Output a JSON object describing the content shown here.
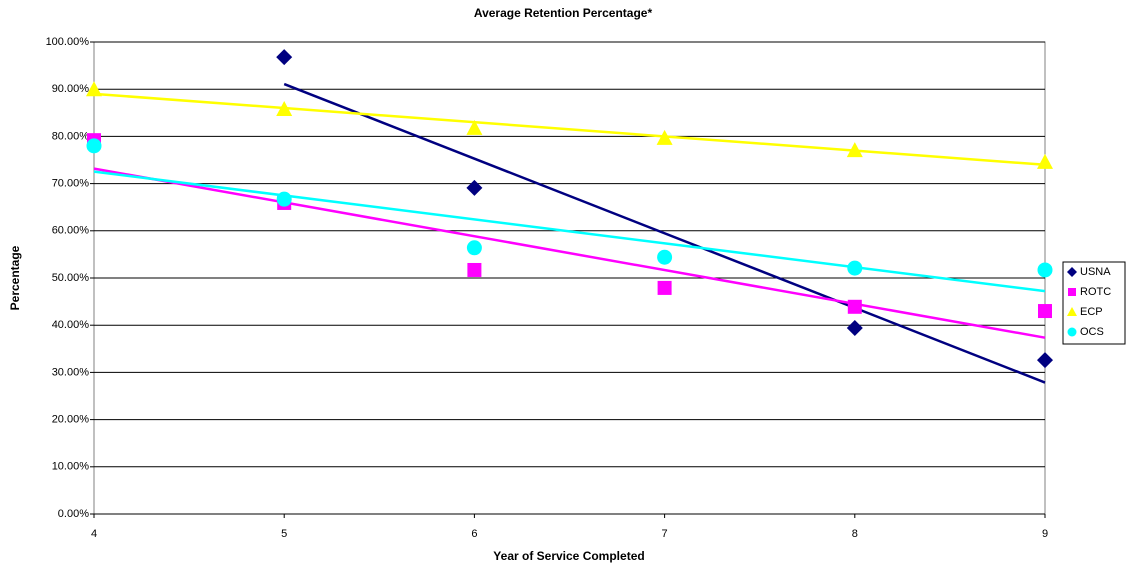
{
  "chart_data": {
    "type": "scatter",
    "title": "Average Retention Percentage*",
    "x_label": "Year of Service Completed",
    "y_label": "Percentage",
    "x": [
      4,
      5,
      6,
      7,
      8,
      9
    ],
    "series": [
      {
        "name": "USNA",
        "color": "#000080",
        "marker": "diamond",
        "values": [
          null,
          96.8,
          69.1,
          null,
          39.4,
          32.6
        ]
      },
      {
        "name": "ROTC",
        "color": "#ff00ff",
        "marker": "square",
        "values": [
          79.2,
          65.9,
          51.7,
          47.9,
          43.9,
          43.0
        ]
      },
      {
        "name": "ECP",
        "color": "#ffff00",
        "marker": "triangle",
        "values": [
          90.0,
          85.8,
          81.8,
          79.7,
          77.1,
          74.6
        ]
      },
      {
        "name": "OCS",
        "color": "#00ffff",
        "marker": "circle",
        "values": [
          78.0,
          66.7,
          56.4,
          54.4,
          52.1,
          51.7
        ]
      }
    ],
    "trendline": "linear",
    "xlim": [
      4,
      9
    ],
    "xticks": [
      4,
      5,
      6,
      7,
      8,
      9
    ],
    "ylim": [
      0,
      100
    ],
    "yticks": [
      {
        "value": 0,
        "label": "0.00%"
      },
      {
        "value": 10,
        "label": "10.00%"
      },
      {
        "value": 20,
        "label": "20.00%"
      },
      {
        "value": 30,
        "label": "30.00%"
      },
      {
        "value": 40,
        "label": "40.00%"
      },
      {
        "value": 50,
        "label": "50.00%"
      },
      {
        "value": 60,
        "label": "60.00%"
      },
      {
        "value": 70,
        "label": "70.00%"
      },
      {
        "value": 80,
        "label": "80.00%"
      },
      {
        "value": 90,
        "label": "90.00%"
      },
      {
        "value": 100,
        "label": "100.00%"
      }
    ],
    "grid": true,
    "legend": "right"
  }
}
